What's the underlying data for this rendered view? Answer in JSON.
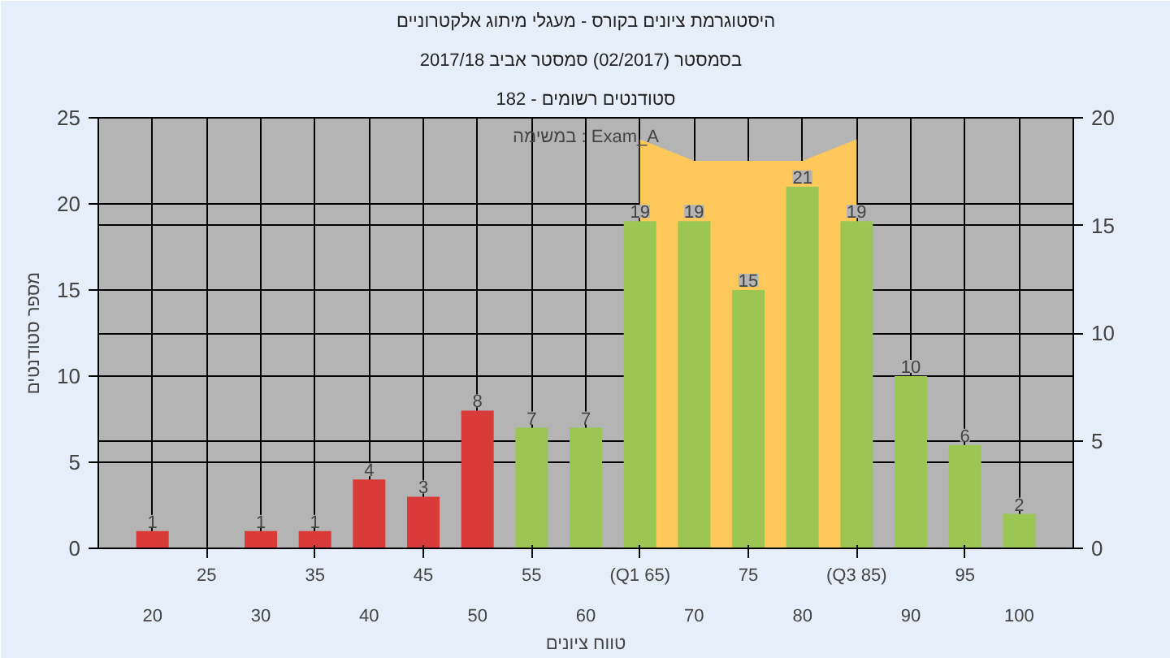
{
  "chart_data": {
    "type": "bar",
    "title": "היסטוגרמת ציונים בקורס - מעגלי מיתוג אלקטרוניים",
    "subtitle": "בסמסטר  (02/2017)  סמסטר אביב 2017/18",
    "xlabel": "טווח ציונים",
    "ylabel": "מספר סטודנטים",
    "annotations": [
      "סטודנטים רשומים - 182",
      "במשימה : Exam_A"
    ],
    "categories": [
      "20",
      "25",
      "30",
      "35",
      "40",
      "45",
      "50",
      "55",
      "60",
      "(Q1 65)",
      "70",
      "75",
      "80",
      "(Q3 85)",
      "90",
      "95",
      "100"
    ],
    "series": [
      {
        "type": "area",
        "axis": "y2",
        "color": "#ffc85a",
        "values": [
          null,
          null,
          null,
          null,
          null,
          null,
          null,
          null,
          null,
          19,
          18,
          18,
          18,
          19,
          null,
          null,
          null
        ]
      },
      {
        "colors": [
          "#d93a3a",
          "#d93a3a",
          "#d93a3a",
          "#d93a3a",
          "#d93a3a",
          "#d93a3a",
          "#d93a3a",
          "#9cc653",
          "#9cc653",
          "#9cc653",
          "#9cc653",
          "#9cc653",
          "#9cc653",
          "#9cc653",
          "#9cc653",
          "#9cc653",
          "#9cc653"
        ],
        "values": [
          1,
          0,
          1,
          1,
          4,
          3,
          8,
          7,
          7,
          19,
          19,
          15,
          21,
          19,
          10,
          6,
          2
        ],
        "value_labels": [
          "1",
          null,
          "1",
          "1",
          "4",
          "3",
          "8",
          "7",
          "7",
          "19",
          "19",
          "15",
          "21",
          "19",
          "10",
          "6",
          "2"
        ]
      }
    ],
    "ylim": [
      0,
      25
    ],
    "yticks": [
      0,
      5,
      10,
      15,
      20,
      25
    ],
    "y2lim": [
      0,
      20
    ],
    "y2ticks": [
      0,
      5,
      10,
      15,
      20
    ],
    "grid": true
  }
}
